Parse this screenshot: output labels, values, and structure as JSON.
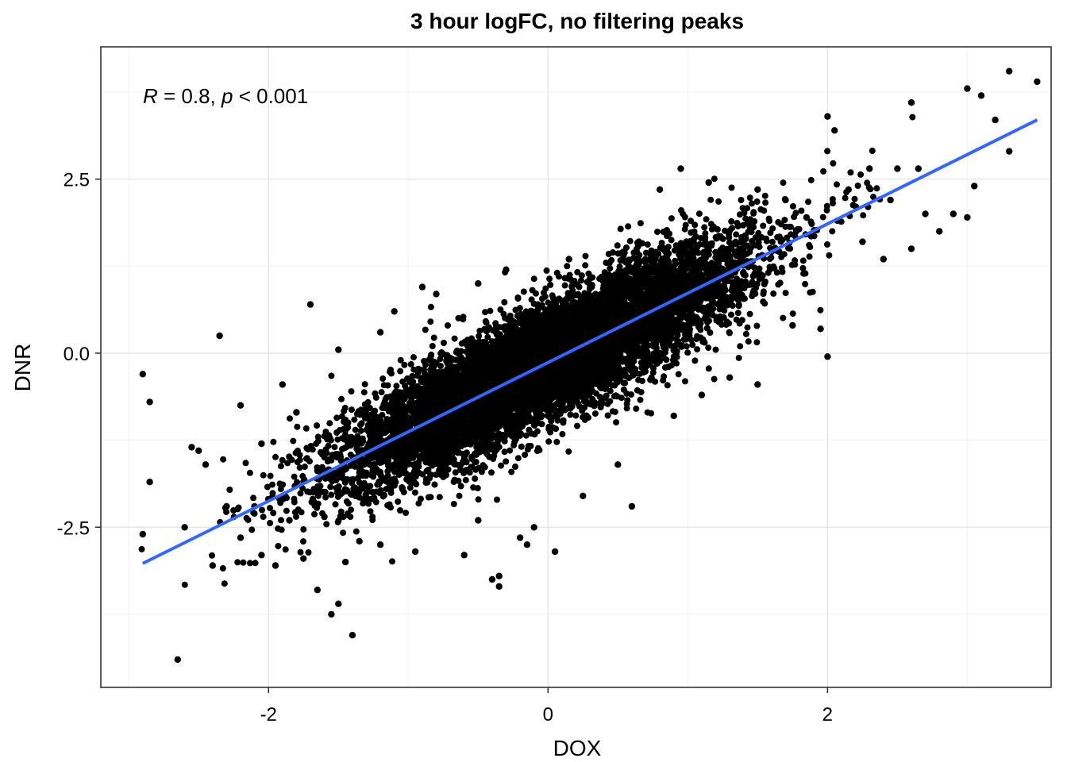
{
  "chart_data": {
    "type": "scatter",
    "title": "3 hour logFC, no filtering peaks",
    "xlabel": "DOX",
    "ylabel": "DNR",
    "xlim": [
      -3.2,
      3.6
    ],
    "ylim": [
      -4.8,
      4.4
    ],
    "x_ticks": [
      -2,
      0,
      2
    ],
    "x_tick_labels": [
      "-2",
      "0",
      "2"
    ],
    "y_ticks": [
      -2.5,
      0,
      2.5
    ],
    "y_tick_labels": [
      "-2.5",
      "0.0",
      "2.5"
    ],
    "grid": true,
    "annotation": {
      "r_symbol": "R",
      "r_text": " = 0.8, ",
      "p_symbol": "p",
      "p_text": " < 0.001",
      "position": "top-left"
    },
    "point_color": "#000000",
    "fit_line": {
      "color": "#3366FF",
      "x": [
        -2.9,
        3.5
      ],
      "y": [
        -3.02,
        3.35
      ]
    },
    "cloud": {
      "center_x": 0.0,
      "center_y": -0.12,
      "slope": 0.995,
      "x_sd": 0.72,
      "residual_sd": 0.42,
      "n": 9000
    },
    "series": [
      {
        "values": [
          [
            -2.9,
            -0.3
          ],
          [
            -2.9,
            -2.6
          ],
          [
            -2.85,
            -0.7
          ],
          [
            -2.85,
            -1.85
          ],
          [
            -2.65,
            -4.4
          ],
          [
            -2.6,
            -2.5
          ],
          [
            -2.55,
            -1.35
          ],
          [
            -2.5,
            -1.4
          ],
          [
            -2.45,
            -1.6
          ],
          [
            -2.4,
            -3.05
          ],
          [
            -2.35,
            0.25
          ],
          [
            -2.3,
            -2.2
          ],
          [
            -2.2,
            -2.65
          ],
          [
            -2.1,
            -2.2
          ],
          [
            -2.05,
            -2.9
          ],
          [
            -1.95,
            -3.05
          ],
          [
            -1.9,
            -0.45
          ],
          [
            -1.85,
            -2.4
          ],
          [
            -1.75,
            -2.95
          ],
          [
            -1.7,
            0.7
          ],
          [
            -1.65,
            -3.4
          ],
          [
            -1.6,
            -2.35
          ],
          [
            -1.55,
            -3.75
          ],
          [
            -1.5,
            -3.6
          ],
          [
            -1.45,
            -3.0
          ],
          [
            -1.4,
            -4.05
          ],
          [
            -1.35,
            -2.7
          ],
          [
            -1.2,
            -2.75
          ],
          [
            -1.1,
            0.6
          ],
          [
            -0.95,
            -2.85
          ],
          [
            -0.8,
            0.85
          ],
          [
            -0.6,
            -2.9
          ],
          [
            -0.5,
            -2.4
          ],
          [
            -0.4,
            -3.25
          ],
          [
            -0.35,
            -3.2
          ],
          [
            -0.35,
            -3.35
          ],
          [
            -0.15,
            -2.75
          ],
          [
            0.05,
            -2.85
          ],
          [
            -0.2,
            -2.65
          ],
          [
            0.15,
            1.35
          ],
          [
            0.4,
            1.05
          ],
          [
            0.6,
            -2.2
          ],
          [
            0.65,
            1.6
          ],
          [
            0.8,
            2.35
          ],
          [
            0.95,
            2.65
          ],
          [
            1.15,
            2.45
          ],
          [
            1.3,
            -0.35
          ],
          [
            1.4,
            1.5
          ],
          [
            1.5,
            2.35
          ],
          [
            1.7,
            2.2
          ],
          [
            1.85,
            1.95
          ],
          [
            1.95,
            0.35
          ],
          [
            2.0,
            -0.05
          ],
          [
            2.0,
            3.4
          ],
          [
            2.05,
            3.2
          ],
          [
            2.15,
            2.35
          ],
          [
            2.25,
            1.6
          ],
          [
            2.3,
            2.65
          ],
          [
            2.4,
            1.35
          ],
          [
            2.5,
            2.65
          ],
          [
            2.6,
            3.6
          ],
          [
            2.65,
            2.65
          ],
          [
            2.7,
            2.0
          ],
          [
            2.8,
            1.75
          ],
          [
            2.9,
            2.0
          ],
          [
            3.0,
            3.8
          ],
          [
            3.05,
            2.4
          ],
          [
            3.0,
            1.95
          ],
          [
            3.1,
            3.7
          ],
          [
            3.2,
            3.35
          ],
          [
            3.3,
            2.9
          ],
          [
            3.5,
            3.9
          ],
          [
            3.3,
            4.05
          ],
          [
            2.6,
            1.5
          ],
          [
            2.45,
            2.2
          ],
          [
            -2.05,
            -1.3
          ],
          [
            -2.2,
            -0.75
          ],
          [
            -1.8,
            -0.85
          ],
          [
            -1.5,
            0.05
          ],
          [
            -1.2,
            0.3
          ],
          [
            -0.9,
            0.95
          ],
          [
            -0.5,
            1.0
          ],
          [
            -0.3,
            1.2
          ],
          [
            0.5,
            -1.6
          ],
          [
            0.9,
            -0.9
          ],
          [
            1.1,
            -0.6
          ],
          [
            1.5,
            -0.45
          ],
          [
            1.75,
            0.4
          ],
          [
            -0.1,
            -2.5
          ],
          [
            0.25,
            -2.05
          ]
        ]
      }
    ]
  }
}
